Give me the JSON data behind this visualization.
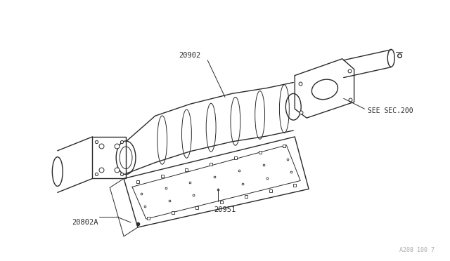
{
  "bg_color": "#ffffff",
  "line_color": "#2a2a2a",
  "fig_width": 6.4,
  "fig_height": 3.72,
  "dpi": 100,
  "label_fontsize": 7.5,
  "watermark": "A208 100 7",
  "part_20902": "20902",
  "part_20951": "20951",
  "part_20802A": "20802A",
  "part_see": "SEE SEC.200"
}
